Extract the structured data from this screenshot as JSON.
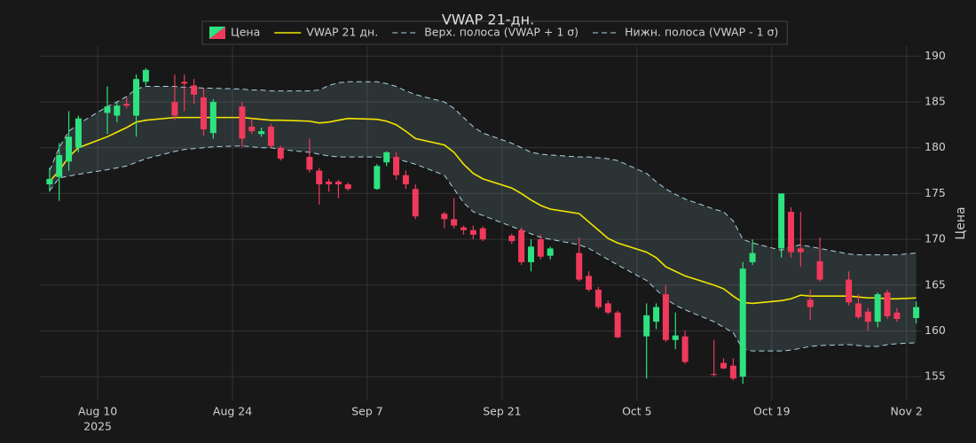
{
  "chart_data": {
    "type": "candlestick",
    "title": "VWAP 21-дн.",
    "ylabel": "Цена",
    "x": [
      "2025-08-05",
      "2025-08-06",
      "2025-08-07",
      "2025-08-08",
      "2025-08-11",
      "2025-08-12",
      "2025-08-13",
      "2025-08-14",
      "2025-08-15",
      "2025-08-18",
      "2025-08-19",
      "2025-08-20",
      "2025-08-21",
      "2025-08-22",
      "2025-08-25",
      "2025-08-26",
      "2025-08-27",
      "2025-08-28",
      "2025-08-29",
      "2025-09-01",
      "2025-09-02",
      "2025-09-03",
      "2025-09-04",
      "2025-09-05",
      "2025-09-08",
      "2025-09-09",
      "2025-09-10",
      "2025-09-11",
      "2025-09-12",
      "2025-09-15",
      "2025-09-16",
      "2025-09-17",
      "2025-09-18",
      "2025-09-19",
      "2025-09-22",
      "2025-09-23",
      "2025-09-24",
      "2025-09-25",
      "2025-09-26",
      "2025-09-29",
      "2025-09-30",
      "2025-10-01",
      "2025-10-02",
      "2025-10-03",
      "2025-10-06",
      "2025-10-07",
      "2025-10-08",
      "2025-10-09",
      "2025-10-10",
      "2025-10-13",
      "2025-10-14",
      "2025-10-15",
      "2025-10-16",
      "2025-10-17",
      "2025-10-20",
      "2025-10-21",
      "2025-10-22",
      "2025-10-23",
      "2025-10-24",
      "2025-10-27",
      "2025-10-28",
      "2025-10-29",
      "2025-10-30",
      "2025-10-31",
      "2025-11-01",
      "2025-11-03"
    ],
    "series": [
      {
        "name": "Цена",
        "kind": "candlestick",
        "increasing_color": "#2ee27f",
        "decreasing_color": "#f0395b",
        "open": [
          176,
          176.8,
          178.5,
          180,
          183.8,
          183.5,
          184.8,
          183.5,
          187.2,
          185,
          187.2,
          186.8,
          185.5,
          181.6,
          184.5,
          182.3,
          181.5,
          182.3,
          180,
          179,
          177.5,
          176.3,
          176.3,
          176,
          175.5,
          178.4,
          179,
          177,
          175.5,
          172.8,
          172.2,
          171.3,
          171,
          171.2,
          170.4,
          171,
          167.5,
          170,
          168.2,
          168.5,
          166,
          164.5,
          163,
          162,
          159.4,
          161,
          164,
          159,
          159.4,
          155.3,
          156.5,
          156.2,
          155,
          167.5,
          169,
          173,
          169,
          163.4,
          167.6,
          165.6,
          163,
          162.1,
          161,
          164.2,
          162,
          161.4
        ],
        "high": [
          177.8,
          180.5,
          184,
          183.5,
          186.7,
          185,
          185.5,
          188,
          188.7,
          188,
          188,
          187.5,
          186.5,
          185.3,
          185,
          183.2,
          182.2,
          182.6,
          180.2,
          181,
          177.8,
          176.6,
          176.5,
          176.2,
          178.2,
          179.6,
          179.5,
          177.5,
          176,
          173,
          174.5,
          171.5,
          171.5,
          171.4,
          170.6,
          171.3,
          170,
          170.5,
          169.2,
          170.2,
          166.5,
          164.8,
          163.3,
          162.2,
          163,
          163,
          165,
          162,
          160,
          159,
          157,
          157,
          167.5,
          170,
          175,
          173.5,
          173,
          164.5,
          170.2,
          166.5,
          164,
          162.5,
          164.2,
          164.5,
          162.5,
          163.2
        ],
        "low": [
          175.2,
          174.2,
          177.5,
          179.5,
          181.5,
          182.8,
          184.3,
          181.2,
          186.8,
          183,
          184,
          184.8,
          181.3,
          181,
          180,
          181.5,
          181.2,
          180,
          178.6,
          177.3,
          173.8,
          175.2,
          174.5,
          175.3,
          175.4,
          178,
          176.5,
          175.5,
          172.2,
          171.2,
          171.2,
          170.5,
          170,
          169.8,
          169.5,
          167.2,
          166.5,
          167.8,
          167.8,
          165.4,
          164.3,
          162.4,
          161.8,
          159.2,
          154.8,
          160.2,
          158.8,
          158,
          156.4,
          155,
          155.8,
          154.6,
          154.2,
          167.2,
          168,
          168,
          167,
          161.2,
          165.4,
          162.8,
          161.3,
          160,
          160.4,
          161.3,
          161,
          160.8
        ],
        "close": [
          176.6,
          179.2,
          181.2,
          183.2,
          184.5,
          184.6,
          184.6,
          187.5,
          188.5,
          183.5,
          187,
          185.8,
          182,
          185,
          181,
          181.8,
          181.8,
          180.2,
          178.8,
          177.6,
          176,
          176,
          176,
          175.5,
          178,
          179.5,
          177,
          176,
          172.5,
          172.2,
          171.5,
          171,
          170.5,
          170,
          169.8,
          167.5,
          169.2,
          168.1,
          169,
          165.6,
          164.5,
          162.6,
          162,
          159.3,
          161.7,
          162.6,
          159,
          159.5,
          156.6,
          155.2,
          155.9,
          154.8,
          166.8,
          168.5,
          175,
          168.6,
          168.6,
          162.6,
          165.6,
          163.1,
          161.5,
          161,
          164,
          161.6,
          161.3,
          162.6
        ]
      },
      {
        "name": "VWAP 21 дн.",
        "kind": "line",
        "color": "#f2e600",
        "dash": false,
        "values": [
          176.3,
          177.5,
          179,
          180,
          181.2,
          181.7,
          182.2,
          182.8,
          183,
          183.3,
          183.3,
          183.3,
          183.3,
          183.3,
          183.3,
          183.2,
          183.1,
          183,
          183,
          182.9,
          182.7,
          182.8,
          183,
          183.2,
          183.1,
          182.9,
          182.5,
          181.8,
          181,
          180.3,
          179.5,
          178.2,
          177.2,
          176.6,
          175.6,
          175,
          174.3,
          173.7,
          173.3,
          172.8,
          171.9,
          171,
          170.1,
          169.6,
          168.6,
          168,
          167,
          166.5,
          166,
          165,
          164.6,
          163.8,
          163.1,
          163,
          163.3,
          163.5,
          163.9,
          163.8,
          163.8,
          163.8,
          163.7,
          163.6,
          163.6,
          163.5,
          163.5,
          163.6
        ]
      },
      {
        "name": "Верх. полоса (VWAP + 1 σ)",
        "kind": "line",
        "color": "#a9d3e2",
        "dash": true,
        "values": [
          177.5,
          180,
          181.8,
          182.6,
          184.5,
          185,
          185.6,
          186.4,
          186.7,
          186.7,
          186.6,
          186.6,
          186.5,
          186.5,
          186.4,
          186.3,
          186.3,
          186.2,
          186.2,
          186.2,
          186.3,
          186.8,
          187.1,
          187.2,
          187.2,
          187,
          186.7,
          186.2,
          185.8,
          185,
          184.3,
          183.3,
          182.3,
          181.6,
          180.5,
          180,
          179.5,
          179.3,
          179.2,
          179,
          179,
          178.9,
          178.8,
          178.6,
          177.2,
          176.3,
          175.5,
          174.9,
          174.4,
          173.3,
          173,
          172,
          170,
          169.6,
          168.8,
          169.2,
          169.4,
          169.2,
          169,
          168.4,
          168.3,
          168.3,
          168.3,
          168.3,
          168.3,
          168.5
        ]
      },
      {
        "name": "Нижн. полоса (VWAP - 1 σ)",
        "kind": "line",
        "color": "#a9d3e2",
        "dash": true,
        "values": [
          175.3,
          176.7,
          176.9,
          177.1,
          177.6,
          177.8,
          178,
          178.4,
          178.8,
          179.6,
          179.8,
          179.9,
          180,
          180.1,
          180.2,
          180.1,
          180,
          180,
          179.8,
          179.5,
          179.3,
          179.1,
          179,
          179,
          179,
          178.9,
          178.8,
          178.5,
          178.2,
          177,
          175.5,
          174,
          173,
          172.6,
          171.4,
          171,
          170.6,
          170.2,
          170,
          169.4,
          169,
          168.4,
          167.8,
          167.2,
          165.5,
          164.5,
          163.5,
          162.8,
          162.3,
          161,
          160.4,
          159.8,
          158,
          157.8,
          157.8,
          157.9,
          158.1,
          158.3,
          158.4,
          158.5,
          158.4,
          158.3,
          158.3,
          158.5,
          158.6,
          158.7
        ]
      }
    ],
    "band_fill": "rgba(150,190,200,0.16)",
    "xlim": [
      "2025-08-04T00:00:00Z",
      "2025-11-03T12:00:00Z"
    ],
    "xticks": [
      {
        "value": "2025-08-10",
        "label": "Aug 10"
      },
      {
        "value": "2025-08-24",
        "label": "Aug 24"
      },
      {
        "value": "2025-09-07",
        "label": "Sep 7"
      },
      {
        "value": "2025-09-21",
        "label": "Sep 21"
      },
      {
        "value": "2025-10-05",
        "label": "Oct 5"
      },
      {
        "value": "2025-10-19",
        "label": "Oct 19"
      },
      {
        "value": "2025-11-02",
        "label": "Nov 2"
      }
    ],
    "x_year_label": "2025",
    "ylim": [
      152.4,
      191.1
    ],
    "yticks": [
      155,
      160,
      165,
      170,
      175,
      180,
      185,
      190
    ],
    "grid": true,
    "legend": "top"
  }
}
